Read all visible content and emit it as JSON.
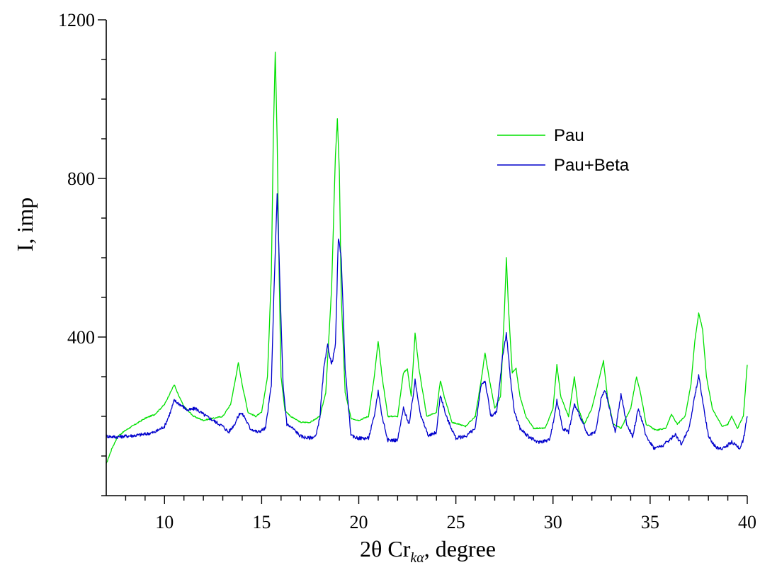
{
  "chart_data": {
    "type": "line",
    "xlabel_main": "2θ Cr",
    "xlabel_sub": "kα",
    "xlabel_tail": ", degree",
    "ylabel": "I, imp",
    "xlim": [
      7,
      40
    ],
    "ylim": [
      0,
      1200
    ],
    "x_ticks": [
      10,
      15,
      20,
      25,
      30,
      35,
      40
    ],
    "x_minor_ticks": [
      8,
      9,
      11,
      12,
      13,
      14,
      16,
      17,
      18,
      19,
      21,
      22,
      23,
      24,
      26,
      27,
      28,
      29,
      31,
      32,
      33,
      34,
      36,
      37,
      38,
      39
    ],
    "y_ticks": [
      400,
      800,
      1200
    ],
    "y_minor_ticks": [
      0,
      200,
      600,
      1000
    ],
    "y_minor_ticks_extra": [
      100,
      300,
      500,
      700,
      900,
      1100
    ],
    "legend_position": "upper-right",
    "series": [
      {
        "name": "Pau",
        "color": "#00e000",
        "x": [
          7.0,
          7.3,
          7.6,
          8.0,
          8.5,
          9.0,
          9.5,
          10.0,
          10.3,
          10.5,
          10.7,
          11.0,
          11.5,
          12.0,
          12.5,
          13.0,
          13.4,
          13.6,
          13.8,
          14.0,
          14.3,
          14.7,
          15.0,
          15.3,
          15.5,
          15.6,
          15.7,
          15.8,
          15.9,
          16.0,
          16.2,
          16.5,
          17.0,
          17.5,
          18.0,
          18.3,
          18.6,
          18.8,
          18.9,
          19.0,
          19.1,
          19.3,
          19.6,
          20.0,
          20.5,
          20.8,
          21.0,
          21.2,
          21.5,
          22.0,
          22.3,
          22.5,
          22.7,
          22.9,
          23.1,
          23.5,
          24.0,
          24.2,
          24.4,
          24.8,
          25.5,
          26.0,
          26.3,
          26.5,
          26.7,
          27.0,
          27.3,
          27.5,
          27.6,
          27.7,
          27.9,
          28.1,
          28.3,
          28.6,
          29.0,
          29.6,
          30.0,
          30.2,
          30.4,
          30.8,
          31.1,
          31.3,
          31.6,
          32.0,
          32.4,
          32.6,
          32.8,
          33.1,
          33.5,
          34.0,
          34.3,
          34.5,
          34.8,
          35.3,
          35.8,
          36.1,
          36.4,
          36.8,
          37.1,
          37.3,
          37.5,
          37.7,
          37.9,
          38.2,
          38.7,
          39.0,
          39.2,
          39.5,
          39.8,
          40.0
        ],
        "y": [
          80,
          120,
          150,
          165,
          180,
          195,
          205,
          230,
          260,
          280,
          255,
          225,
          200,
          190,
          195,
          200,
          230,
          280,
          335,
          280,
          210,
          200,
          210,
          300,
          560,
          900,
          1120,
          900,
          560,
          300,
          215,
          200,
          185,
          185,
          200,
          260,
          520,
          860,
          950,
          820,
          500,
          260,
          195,
          190,
          200,
          300,
          390,
          300,
          200,
          200,
          310,
          320,
          250,
          410,
          320,
          200,
          210,
          290,
          250,
          185,
          175,
          200,
          290,
          360,
          300,
          220,
          250,
          470,
          600,
          480,
          310,
          320,
          250,
          200,
          170,
          170,
          220,
          330,
          250,
          200,
          300,
          220,
          180,
          220,
          300,
          340,
          250,
          180,
          170,
          220,
          300,
          260,
          180,
          165,
          170,
          205,
          180,
          200,
          280,
          390,
          460,
          420,
          300,
          220,
          175,
          180,
          200,
          170,
          200,
          330
        ]
      },
      {
        "name": "Pau+Beta",
        "color": "#0000cc",
        "x": [
          7.0,
          7.5,
          8.0,
          8.5,
          9.0,
          9.5,
          10.0,
          10.3,
          10.5,
          10.8,
          11.2,
          11.6,
          12.0,
          12.5,
          13.0,
          13.3,
          13.6,
          13.9,
          14.1,
          14.4,
          14.8,
          15.2,
          15.5,
          15.65,
          15.8,
          15.95,
          16.1,
          16.3,
          16.6,
          17.0,
          17.4,
          17.8,
          18.0,
          18.2,
          18.4,
          18.6,
          18.8,
          18.95,
          19.1,
          19.3,
          19.6,
          20.0,
          20.5,
          20.8,
          21.0,
          21.2,
          21.5,
          22.0,
          22.3,
          22.6,
          22.9,
          23.2,
          23.6,
          24.0,
          24.2,
          24.5,
          25.0,
          25.5,
          26.0,
          26.3,
          26.5,
          26.8,
          27.1,
          27.4,
          27.6,
          27.8,
          28.0,
          28.3,
          28.7,
          29.2,
          29.8,
          30.0,
          30.2,
          30.5,
          30.8,
          31.1,
          31.4,
          31.8,
          32.2,
          32.5,
          32.7,
          33.0,
          33.2,
          33.5,
          33.8,
          34.1,
          34.4,
          34.8,
          35.2,
          35.6,
          36.0,
          36.3,
          36.6,
          37.0,
          37.3,
          37.5,
          37.7,
          38.0,
          38.4,
          38.8,
          39.2,
          39.6,
          39.8,
          40.0
        ],
        "y": [
          150,
          148,
          150,
          152,
          155,
          160,
          175,
          210,
          240,
          230,
          215,
          220,
          205,
          190,
          175,
          160,
          180,
          210,
          200,
          170,
          160,
          170,
          280,
          540,
          760,
          520,
          280,
          180,
          170,
          150,
          145,
          150,
          200,
          320,
          380,
          330,
          380,
          650,
          600,
          320,
          150,
          145,
          145,
          200,
          265,
          200,
          140,
          140,
          220,
          180,
          290,
          200,
          150,
          160,
          255,
          200,
          145,
          150,
          170,
          280,
          290,
          200,
          210,
          350,
          410,
          300,
          215,
          170,
          150,
          135,
          140,
          180,
          240,
          170,
          160,
          230,
          200,
          150,
          160,
          250,
          265,
          200,
          160,
          255,
          180,
          150,
          220,
          150,
          120,
          125,
          140,
          155,
          130,
          170,
          250,
          305,
          240,
          150,
          120,
          120,
          135,
          120,
          140,
          200
        ]
      }
    ]
  }
}
